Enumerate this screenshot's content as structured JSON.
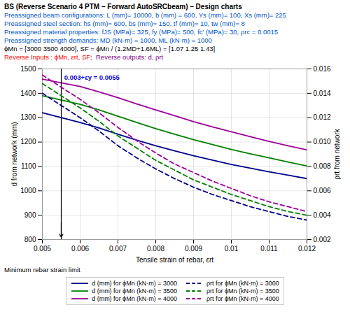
{
  "chart_data": {
    "type": "line",
    "title": "BS (Reverse Scenario 4 PTM – Forward AutoSRCbeam) – Design charts",
    "subtitle": [
      [
        {
          "text": "Preassigned beam configurations: L (mm)= 10000, b (mm) = 600, Ys (mm)= 100, Xs (mm)= 225",
          "color": "#0055CC"
        }
      ],
      [
        {
          "text": "Preassigned steel section: hs (mm)= 600, bs (mm)= 150, tf (mm)= 10, tw (mm)= 8",
          "color": "#0055CC"
        }
      ],
      [
        {
          "text": "Preassigned material properties: fJS (MPa)= 325, fy (MPa)= 500, fc′ (MPa)= 30, ρrc = 0.0015",
          "color": "#0055CC"
        }
      ],
      [
        {
          "text": "Preassigned strength demands: MD (kN·m) = 1000, ML (kN·m) = 1000",
          "color": "#0055CC"
        }
      ],
      [
        {
          "text": "ϕMn = [3000 3500 4000], SF = ϕMn / (1.2MD+1.6ML) = [1.07 1.25 1.43]",
          "color": "#000000"
        }
      ],
      [
        {
          "text": "Reverse Inputs : ϕMn, εrt, SF;",
          "color": "red"
        },
        {
          "text": "  Reverse outputs: d, ρrt",
          "color": "purple"
        }
      ]
    ],
    "xlabel": "Tensile strain of rebar, εrt",
    "ylabel": "d from network (mm)",
    "y2label": "ρrt from network",
    "x": [
      0.005,
      0.006,
      0.0065,
      0.007,
      0.0075,
      0.008,
      0.0085,
      0.009,
      0.0095,
      0.01,
      0.0105,
      0.011,
      0.0115,
      0.012
    ],
    "series": [
      {
        "name": "d (mm) for ϕMn (kN·m) = 3000",
        "color": "#00008B",
        "line_style": "solid",
        "values": [
          1320,
          1280,
          1258,
          1232,
          1208,
          1185,
          1164,
          1144,
          1126,
          1108,
          1093,
          1078,
          1064,
          1050
        ]
      },
      {
        "name": "d (mm) for ϕMn (kN·m) = 3500",
        "color": "#008000",
        "line_style": "solid",
        "values": [
          1390,
          1355,
          1332,
          1306,
          1280,
          1255,
          1232,
          1210,
          1190,
          1170,
          1152,
          1135,
          1118,
          1102
        ]
      },
      {
        "name": "d (mm) for ϕMn (kN·m) = 4000",
        "color": "#9B009B",
        "line_style": "solid",
        "values": [
          1458,
          1428,
          1406,
          1382,
          1356,
          1332,
          1308,
          1284,
          1262,
          1242,
          1222,
          1203,
          1185,
          1168
        ]
      },
      {
        "name": "ρrt for ϕMn (kN·m) = 3000",
        "color": "#00008B",
        "line_style": "dashed",
        "axis": "y2",
        "values": [
          0.014,
          0.012,
          0.0109,
          0.0097,
          0.0087,
          0.0078,
          0.007,
          0.0063,
          0.0057,
          0.0052,
          0.0047,
          0.0043,
          0.0039,
          0.0036
        ]
      },
      {
        "name": "ρrt for ϕMn (kN·m) = 3500",
        "color": "#008000",
        "line_style": "dashed",
        "axis": "y2",
        "values": [
          0.0148,
          0.0128,
          0.0117,
          0.0105,
          0.0095,
          0.0085,
          0.0077,
          0.0069,
          0.0063,
          0.0057,
          0.0052,
          0.0047,
          0.0043,
          0.004
        ]
      },
      {
        "name": "ρrt for ϕMn (kN·m) = 4000",
        "color": "#9B009B",
        "line_style": "dashed",
        "axis": "y2",
        "values": [
          0.0155,
          0.0135,
          0.0124,
          0.0112,
          0.0101,
          0.0091,
          0.0082,
          0.0075,
          0.0068,
          0.0062,
          0.0056,
          0.0051,
          0.0047,
          0.0043
        ]
      }
    ],
    "xlim": [
      0.005,
      0.012
    ],
    "xticks": [
      0.005,
      0.006,
      0.007,
      0.008,
      0.009,
      0.01,
      0.011,
      0.012
    ],
    "ylim": [
      800,
      1500
    ],
    "yticks": [
      800,
      900,
      1000,
      1100,
      1200,
      1300,
      1400,
      1500
    ],
    "y2lim": [
      0.002,
      0.016
    ],
    "y2ticks": [
      0.002,
      0.004,
      0.006,
      0.008,
      {
        "value": 0.01,
        "label": "0.010"
      },
      0.012,
      0.014,
      0.016
    ],
    "vlines": [
      {
        "x": 0.0055,
        "color": "black",
        "arrow": {
          "y_from": 870,
          "y_to": 810
        }
      }
    ],
    "annotations": [
      {
        "text": "0.003+εy = 0.0055",
        "x": 0.00558,
        "y": 1475,
        "color": "#0000CD"
      },
      {
        "text": "Minimum rebar strain limit",
        "color": "black"
      }
    ],
    "grid": true,
    "legend": "bottom"
  }
}
